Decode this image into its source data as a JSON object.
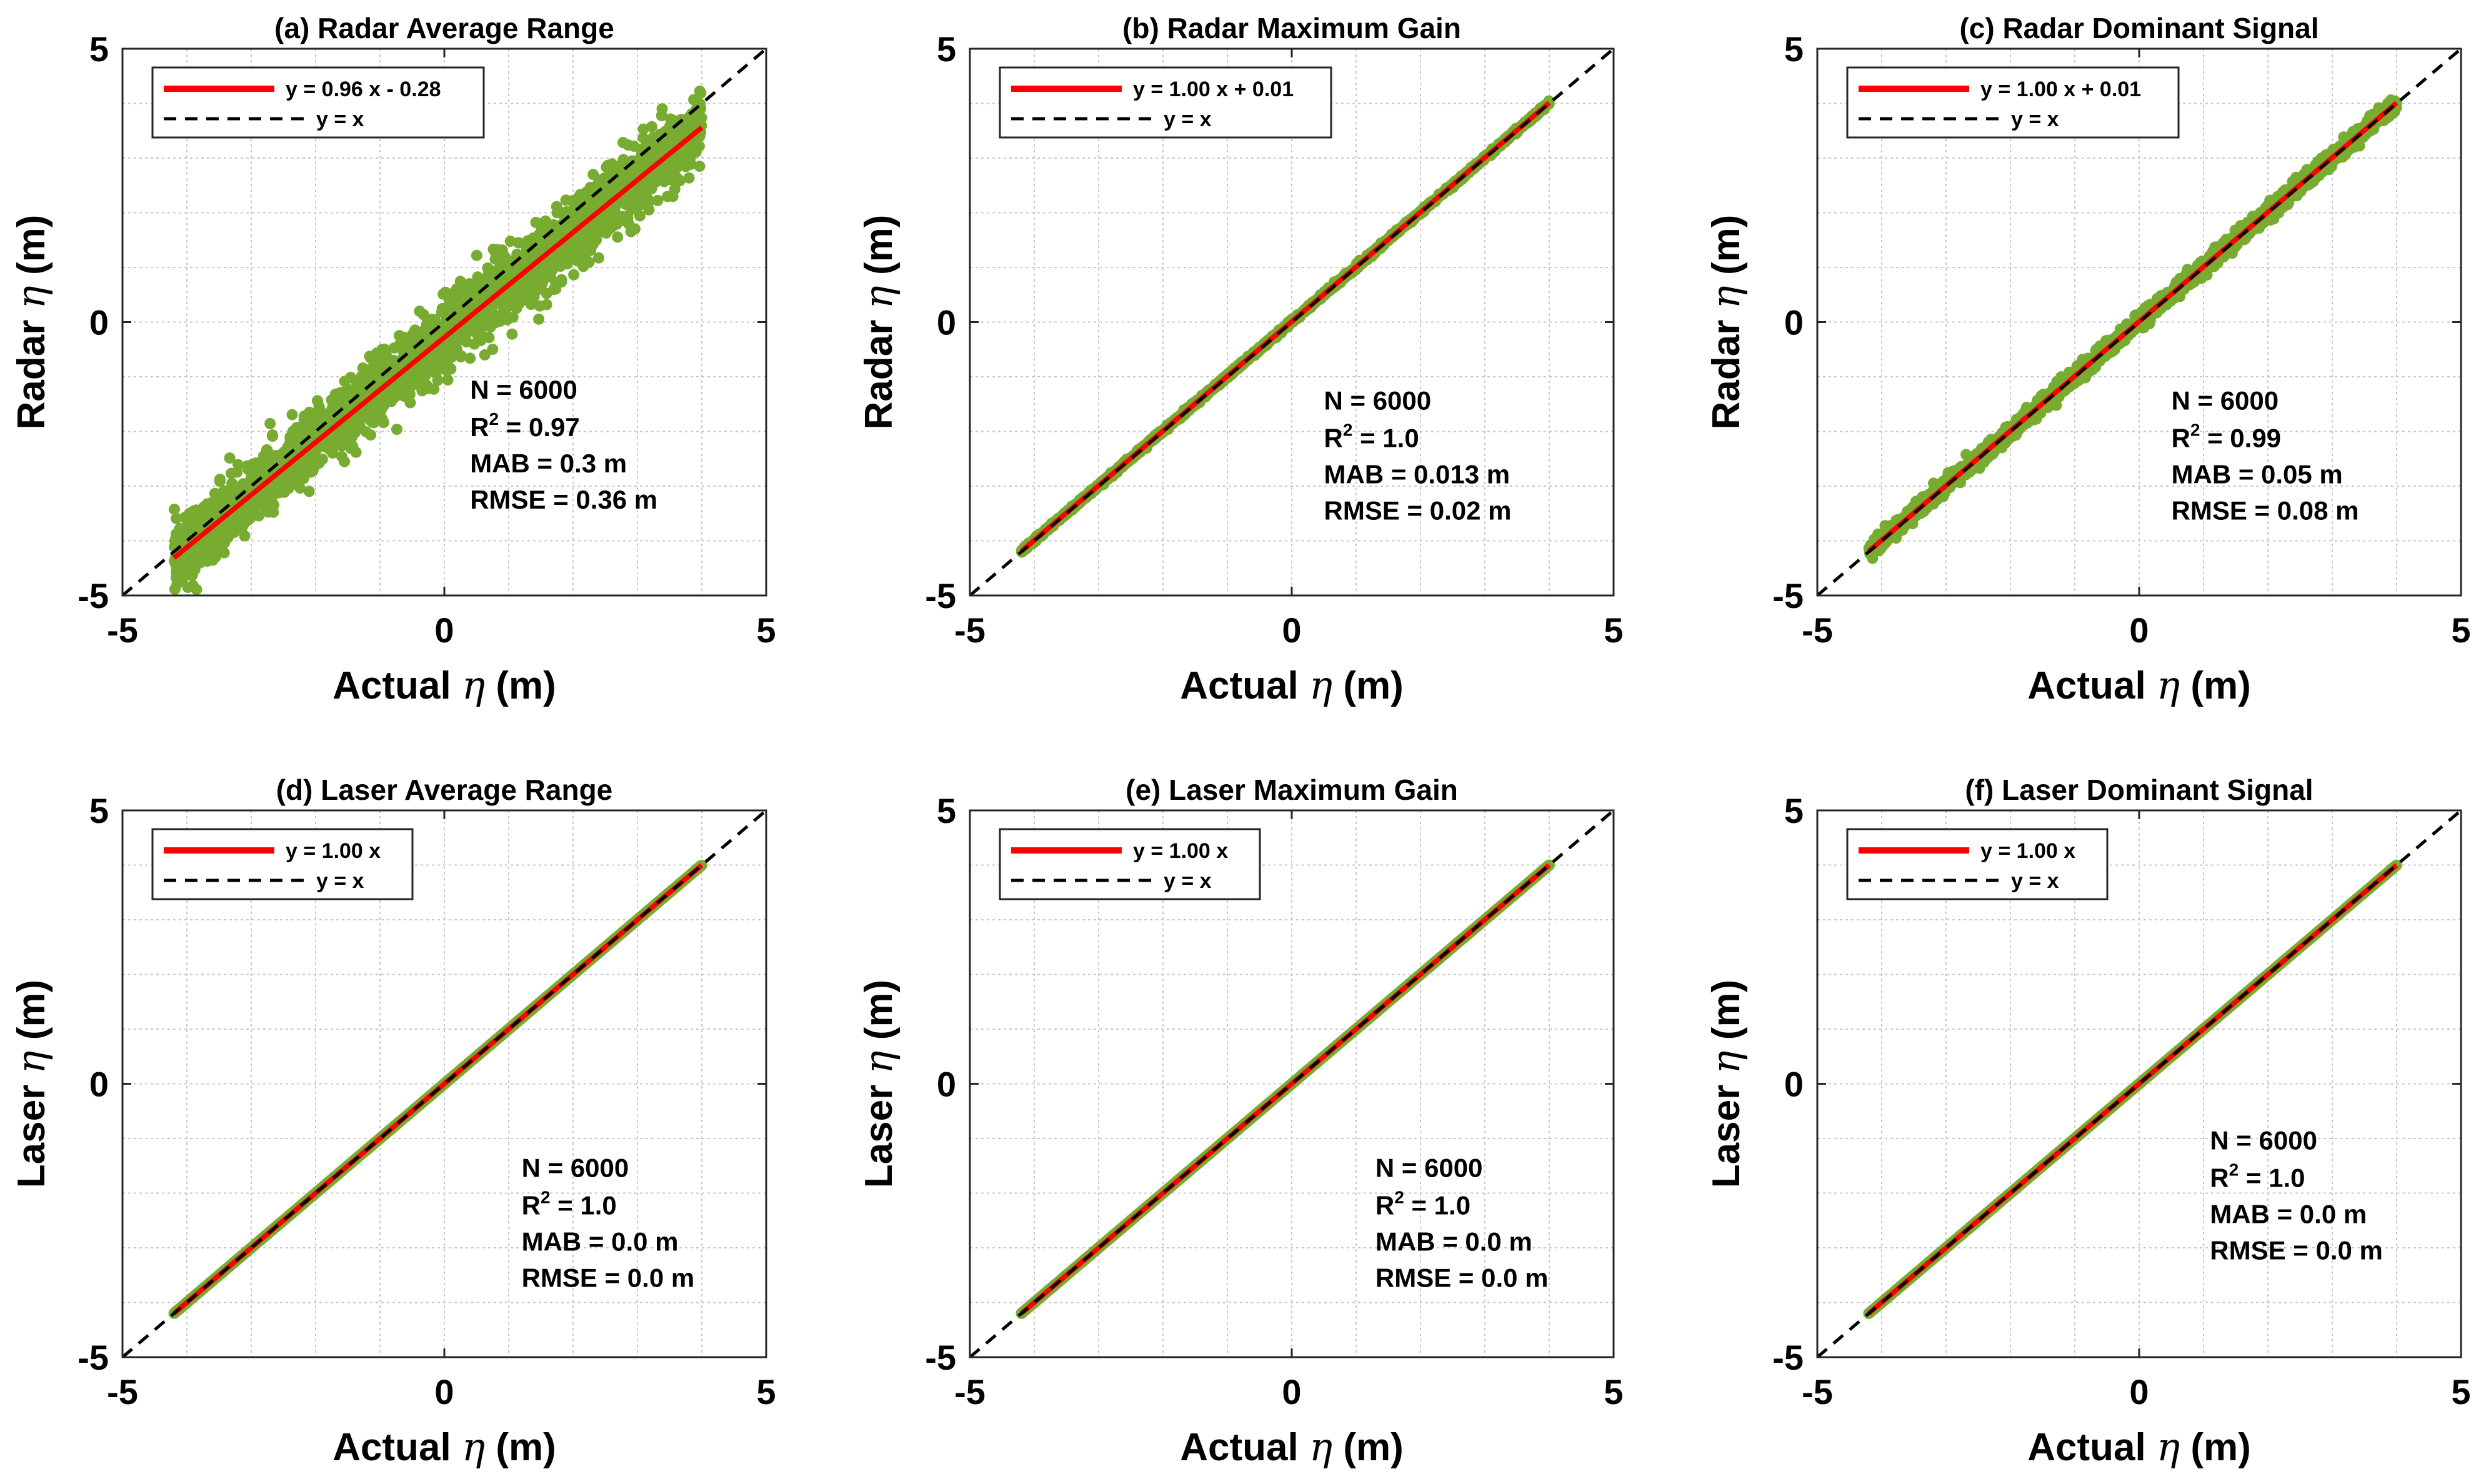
{
  "chart_data": [
    {
      "type": "scatter",
      "title": "(a) Radar Average Range",
      "xlabel_prefix": "Actual ",
      "xlabel_symbol": "η",
      "xlabel_suffix": " (m)",
      "ylabel_prefix": "Radar ",
      "ylabel_symbol": "η",
      "ylabel_suffix": " (m)",
      "xlim": [
        -5,
        5
      ],
      "ylim": [
        -5,
        5
      ],
      "xticks": [
        -5,
        0,
        5
      ],
      "yticks": [
        -5,
        0,
        5
      ],
      "grid_step": 1,
      "series": [
        {
          "name": "measurements",
          "kind": "scatter",
          "color": "#77ac30",
          "x_range": [
            -4.2,
            4.0
          ],
          "slope": 0.96,
          "intercept": -0.28,
          "spread": 0.36,
          "count": 6000
        },
        {
          "name": "y = 0.96 x  - 0.28",
          "kind": "fit",
          "color": "#ff0000",
          "slope": 0.96,
          "intercept": -0.28,
          "x_range": [
            -4.2,
            4.0
          ]
        },
        {
          "name": "y = x",
          "kind": "identity",
          "color": "#000000",
          "slope": 1.0,
          "intercept": 0.0
        }
      ],
      "legend": {
        "position": "top-left",
        "entries": [
          "y = 0.96 x  - 0.28",
          "y = x"
        ]
      },
      "stats": {
        "n": "N = 6000",
        "r2_prefix": "R",
        "r2_exp": "2",
        "r2_value": " = 0.97",
        "mab": "MAB =  0.3 m",
        "rmse": "RMSE = 0.36 m"
      }
    },
    {
      "type": "scatter",
      "title": "(b) Radar Maximum Gain",
      "xlabel_prefix": "Actual ",
      "xlabel_symbol": "η",
      "xlabel_suffix": " (m)",
      "ylabel_prefix": "Radar ",
      "ylabel_symbol": "η",
      "ylabel_suffix": " (m)",
      "xlim": [
        -5,
        5
      ],
      "ylim": [
        -5,
        5
      ],
      "xticks": [
        -5,
        0,
        5
      ],
      "yticks": [
        -5,
        0,
        5
      ],
      "grid_step": 1,
      "series": [
        {
          "name": "measurements",
          "kind": "scatter",
          "color": "#77ac30",
          "x_range": [
            -4.2,
            4.0
          ],
          "slope": 1.0,
          "intercept": 0.01,
          "spread": 0.02,
          "count": 6000
        },
        {
          "name": "y = 1.00 x + 0.01",
          "kind": "fit",
          "color": "#ff0000",
          "slope": 1.0,
          "intercept": 0.01,
          "x_range": [
            -4.2,
            4.0
          ]
        },
        {
          "name": "y = x",
          "kind": "identity",
          "color": "#000000",
          "slope": 1.0,
          "intercept": 0.0
        }
      ],
      "legend": {
        "position": "top-left",
        "entries": [
          "y = 1.00 x + 0.01",
          "y = x"
        ]
      },
      "stats": {
        "n": "N = 6000",
        "r2_prefix": "R",
        "r2_exp": "2",
        "r2_value": " = 1.0",
        "mab": "MAB = 0.013 m",
        "rmse": "RMSE = 0.02 m"
      }
    },
    {
      "type": "scatter",
      "title": "(c) Radar Dominant Signal",
      "xlabel_prefix": "Actual ",
      "xlabel_symbol": "η",
      "xlabel_suffix": " (m)",
      "ylabel_prefix": "Radar ",
      "ylabel_symbol": "η",
      "ylabel_suffix": " (m)",
      "xlim": [
        -5,
        5
      ],
      "ylim": [
        -5,
        5
      ],
      "xticks": [
        -5,
        0,
        5
      ],
      "yticks": [
        -5,
        0,
        5
      ],
      "grid_step": 1,
      "series": [
        {
          "name": "measurements",
          "kind": "scatter",
          "color": "#77ac30",
          "x_range": [
            -4.2,
            4.0
          ],
          "slope": 1.0,
          "intercept": 0.01,
          "spread": 0.08,
          "count": 6000
        },
        {
          "name": "y = 1.00 x + 0.01",
          "kind": "fit",
          "color": "#ff0000",
          "slope": 1.0,
          "intercept": 0.01,
          "x_range": [
            -4.2,
            4.0
          ]
        },
        {
          "name": "y = x",
          "kind": "identity",
          "color": "#000000",
          "slope": 1.0,
          "intercept": 0.0
        }
      ],
      "legend": {
        "position": "top-left",
        "entries": [
          "y = 1.00 x + 0.01",
          "y = x"
        ]
      },
      "stats": {
        "n": "N = 6000",
        "r2_prefix": "R",
        "r2_exp": "2",
        "r2_value": " = 0.99",
        "mab": "MAB = 0.05 m",
        "rmse": "RMSE = 0.08 m"
      }
    },
    {
      "type": "scatter",
      "title": "(d) Laser Average Range",
      "xlabel_prefix": "Actual ",
      "xlabel_symbol": "η",
      "xlabel_suffix": " (m)",
      "ylabel_prefix": "Laser ",
      "ylabel_symbol": "η",
      "ylabel_suffix": " (m)",
      "xlim": [
        -5,
        5
      ],
      "ylim": [
        -5,
        5
      ],
      "xticks": [
        -5,
        0,
        5
      ],
      "yticks": [
        -5,
        0,
        5
      ],
      "grid_step": 1,
      "series": [
        {
          "name": "measurements",
          "kind": "scatter",
          "color": "#77ac30",
          "x_range": [
            -4.2,
            4.0
          ],
          "slope": 1.0,
          "intercept": 0.0,
          "spread": 0.0,
          "count": 6000
        },
        {
          "name": "y = 1.00 x",
          "kind": "fit",
          "color": "#ff0000",
          "slope": 1.0,
          "intercept": 0.0,
          "x_range": [
            -4.2,
            4.0
          ]
        },
        {
          "name": "y = x",
          "kind": "identity",
          "color": "#000000",
          "slope": 1.0,
          "intercept": 0.0
        }
      ],
      "legend": {
        "position": "top-left",
        "entries": [
          "y = 1.00 x",
          "y = x"
        ]
      },
      "stats": {
        "n": "N = 6000",
        "r2_prefix": "R",
        "r2_exp": "2",
        "r2_value": " = 1.0",
        "mab": "MAB = 0.0 m",
        "rmse": "RMSE = 0.0 m"
      }
    },
    {
      "type": "scatter",
      "title": "(e) Laser Maximum Gain",
      "xlabel_prefix": "Actual ",
      "xlabel_symbol": "η",
      "xlabel_suffix": " (m)",
      "ylabel_prefix": "Laser ",
      "ylabel_symbol": "η",
      "ylabel_suffix": " (m)",
      "xlim": [
        -5,
        5
      ],
      "ylim": [
        -5,
        5
      ],
      "xticks": [
        -5,
        0,
        5
      ],
      "yticks": [
        -5,
        0,
        5
      ],
      "grid_step": 1,
      "series": [
        {
          "name": "measurements",
          "kind": "scatter",
          "color": "#77ac30",
          "x_range": [
            -4.2,
            4.0
          ],
          "slope": 1.0,
          "intercept": 0.0,
          "spread": 0.0,
          "count": 6000
        },
        {
          "name": "y = 1.00 x",
          "kind": "fit",
          "color": "#ff0000",
          "slope": 1.0,
          "intercept": 0.0,
          "x_range": [
            -4.2,
            4.0
          ]
        },
        {
          "name": "y = x",
          "kind": "identity",
          "color": "#000000",
          "slope": 1.0,
          "intercept": 0.0
        }
      ],
      "legend": {
        "position": "top-left",
        "entries": [
          "y = 1.00 x",
          "y = x"
        ]
      },
      "stats": {
        "n": "N = 6000",
        "r2_prefix": "R",
        "r2_exp": "2",
        "r2_value": " = 1.0",
        "mab": "MAB = 0.0 m",
        "rmse": "RMSE = 0.0 m"
      }
    },
    {
      "type": "scatter",
      "title": "(f) Laser Dominant Signal",
      "xlabel_prefix": "Actual ",
      "xlabel_symbol": "η",
      "xlabel_suffix": " (m)",
      "ylabel_prefix": "Laser ",
      "ylabel_symbol": "η",
      "ylabel_suffix": " (m)",
      "xlim": [
        -5,
        5
      ],
      "ylim": [
        -5,
        5
      ],
      "xticks": [
        -5,
        0,
        5
      ],
      "yticks": [
        -5,
        0,
        5
      ],
      "grid_step": 1,
      "series": [
        {
          "name": "measurements",
          "kind": "scatter",
          "color": "#77ac30",
          "x_range": [
            -4.2,
            4.0
          ],
          "slope": 1.0,
          "intercept": 0.0,
          "spread": 0.0,
          "count": 6000
        },
        {
          "name": "y = 1.00 x",
          "kind": "fit",
          "color": "#ff0000",
          "slope": 1.0,
          "intercept": 0.0,
          "x_range": [
            -4.2,
            4.0
          ]
        },
        {
          "name": "y = x",
          "kind": "identity",
          "color": "#000000",
          "slope": 1.0,
          "intercept": 0.0
        }
      ],
      "legend": {
        "position": "top-left",
        "entries": [
          "y = 1.00 x",
          "y = x"
        ]
      },
      "stats": {
        "n": "N = 6000",
        "r2_prefix": "R",
        "r2_exp": "2",
        "r2_value": " = 1.0",
        "mab": "MAB = 0.0 m",
        "rmse": "RMSE = 0.0 m"
      }
    }
  ]
}
